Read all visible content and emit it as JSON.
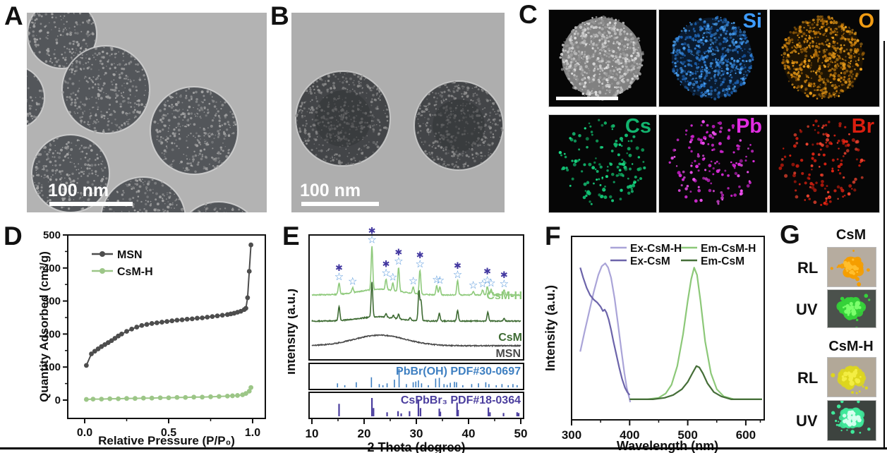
{
  "panels": {
    "a": {
      "label": "A",
      "scale_bar": "100 nm"
    },
    "b": {
      "label": "B",
      "scale_bar": "100 nm"
    },
    "c": {
      "label": "C",
      "tiles": [
        {
          "label": "",
          "color": "",
          "type": "stem"
        },
        {
          "label": "Si",
          "color": "#3d9bff",
          "type": "dense"
        },
        {
          "label": "O",
          "color": "#f09b13",
          "type": "dense"
        },
        {
          "label": "Cs",
          "color": "#12b46e",
          "type": "sparse"
        },
        {
          "label": "Pb",
          "color": "#e22ce2",
          "type": "sparse"
        },
        {
          "label": "Br",
          "color": "#da1e0f",
          "type": "sparse"
        }
      ]
    },
    "d": {
      "label": "D"
    },
    "e": {
      "label": "E"
    },
    "f": {
      "label": "F"
    },
    "g": {
      "label": "G",
      "samples": [
        {
          "title": "CsM",
          "rows": [
            {
              "light": "RL"
            },
            {
              "light": "UV"
            }
          ]
        },
        {
          "title": "CsM-H",
          "rows": [
            {
              "light": "RL"
            },
            {
              "light": "UV"
            }
          ]
        }
      ]
    }
  },
  "chart_data": [
    {
      "panel": "D",
      "type": "line",
      "title": "",
      "xlabel": "Relative Pressure (P/P₀)",
      "ylabel": "Quantity Adsorbed (cm³/g)",
      "xlim": [
        0,
        1.05
      ],
      "ylim": [
        -50,
        500
      ],
      "grid": false,
      "legend_position": "top-left",
      "xticks": [
        "0.0",
        "0.5",
        "1.0"
      ],
      "xtick_vals": [
        0.0,
        0.5,
        1.0
      ],
      "yticks": [
        "0",
        "100",
        "200",
        "300",
        "400",
        "500"
      ],
      "ytick_vals": [
        0,
        100,
        200,
        300,
        400,
        500
      ],
      "series": [
        {
          "name": "MSN",
          "color": "#4d4d4d",
          "x": [
            0.01,
            0.04,
            0.06,
            0.08,
            0.1,
            0.12,
            0.14,
            0.16,
            0.18,
            0.2,
            0.22,
            0.25,
            0.28,
            0.31,
            0.34,
            0.37,
            0.4,
            0.43,
            0.46,
            0.49,
            0.52,
            0.55,
            0.58,
            0.61,
            0.64,
            0.67,
            0.7,
            0.73,
            0.76,
            0.79,
            0.82,
            0.85,
            0.87,
            0.89,
            0.91,
            0.93,
            0.95,
            0.96,
            0.97,
            0.98,
            0.99
          ],
          "y": [
            105,
            140,
            148,
            155,
            162,
            168,
            174,
            180,
            187,
            194,
            200,
            208,
            215,
            221,
            226,
            229,
            232,
            234,
            236,
            238,
            240,
            242,
            243,
            245,
            246,
            248,
            249,
            251,
            253,
            255,
            257,
            259,
            261,
            263,
            266,
            269,
            274,
            278,
            310,
            390,
            470
          ]
        },
        {
          "name": "CsM-H",
          "color": "#9cc687",
          "x": [
            0.01,
            0.05,
            0.1,
            0.15,
            0.2,
            0.25,
            0.3,
            0.35,
            0.4,
            0.45,
            0.5,
            0.55,
            0.6,
            0.65,
            0.7,
            0.75,
            0.8,
            0.85,
            0.88,
            0.91,
            0.94,
            0.96,
            0.98,
            0.99
          ],
          "y": [
            2,
            3,
            3,
            4,
            4,
            5,
            5,
            6,
            6,
            7,
            7,
            8,
            8,
            9,
            9,
            10,
            11,
            12,
            13,
            14,
            16,
            20,
            27,
            38
          ]
        }
      ]
    },
    {
      "panel": "E",
      "type": "line",
      "title": "",
      "xlabel": "2 Theta (degree)",
      "ylabel": "Intensity (a.u.)",
      "xlim": [
        10,
        50
      ],
      "xticks": [
        "10",
        "20",
        "30",
        "40",
        "50"
      ],
      "xtick_vals": [
        10,
        20,
        30,
        40,
        50
      ],
      "traces": [
        {
          "name": "CsM-H",
          "color": "#8fca7c",
          "baseline_offset": 2,
          "peaks": [
            [
              15.2,
              16
            ],
            [
              17.8,
              7
            ],
            [
              21.5,
              62
            ],
            [
              24.2,
              15
            ],
            [
              25.5,
              10
            ],
            [
              26.6,
              34
            ],
            [
              29.4,
              9
            ],
            [
              30.7,
              34
            ],
            [
              33.9,
              13
            ],
            [
              34.5,
              12
            ],
            [
              37.9,
              20
            ],
            [
              40.9,
              5
            ],
            [
              42.7,
              7
            ],
            [
              43.6,
              12
            ],
            [
              44.3,
              8
            ],
            [
              46.8,
              7
            ]
          ]
        },
        {
          "name": "CsM",
          "color": "#3e6b33",
          "baseline_offset": 1,
          "peaks": [
            [
              15.2,
              20
            ],
            [
              21.5,
              50
            ],
            [
              24.2,
              5
            ],
            [
              25.6,
              4
            ],
            [
              26.6,
              7
            ],
            [
              28.8,
              3
            ],
            [
              30.5,
              42
            ],
            [
              30.9,
              28
            ],
            [
              34.4,
              11
            ],
            [
              37.9,
              15
            ],
            [
              43.7,
              13
            ],
            [
              46.8,
              4
            ]
          ]
        },
        {
          "name": "MSN",
          "color": "#4a4a4a",
          "baseline_offset": 0,
          "broad_hump": [
            23,
            15,
            7
          ],
          "peaks": []
        }
      ],
      "star_markers": {
        "open_color": "#4a90d9",
        "filled_color": "#4338a0",
        "positions": [
          [
            15.2,
            "both"
          ],
          [
            17.8,
            "open"
          ],
          [
            21.5,
            "both"
          ],
          [
            24.2,
            "both"
          ],
          [
            25.5,
            "open"
          ],
          [
            26.6,
            "both"
          ],
          [
            29.4,
            "open"
          ],
          [
            30.7,
            "both"
          ],
          [
            33.9,
            "open"
          ],
          [
            34.5,
            "open"
          ],
          [
            37.9,
            "both"
          ],
          [
            40.9,
            "open"
          ],
          [
            42.7,
            "open"
          ],
          [
            43.6,
            "both"
          ],
          [
            44.3,
            "open"
          ],
          [
            46.8,
            "both"
          ]
        ]
      },
      "references": [
        {
          "name": "PbBr(OH) PDF#30-0697",
          "color": "#3e7fc1",
          "sticks": [
            [
              14.9,
              0.22
            ],
            [
              16.3,
              0.12
            ],
            [
              18.5,
              0.28
            ],
            [
              21.4,
              0.55
            ],
            [
              22.9,
              0.18
            ],
            [
              23.6,
              0.12
            ],
            [
              24.4,
              0.22
            ],
            [
              25.8,
              0.42
            ],
            [
              26.7,
              1.0
            ],
            [
              28.1,
              0.18
            ],
            [
              29.4,
              0.28
            ],
            [
              29.9,
              0.32
            ],
            [
              30.4,
              0.38
            ],
            [
              31.0,
              0.22
            ],
            [
              32.3,
              0.12
            ],
            [
              33.7,
              0.48
            ],
            [
              34.4,
              0.52
            ],
            [
              35.3,
              0.18
            ],
            [
              35.9,
              0.14
            ],
            [
              36.5,
              0.25
            ],
            [
              37.3,
              0.3
            ],
            [
              37.7,
              0.28
            ],
            [
              38.9,
              0.12
            ],
            [
              40.6,
              0.18
            ],
            [
              41.9,
              0.22
            ],
            [
              43.3,
              0.28
            ],
            [
              43.9,
              0.18
            ],
            [
              45.3,
              0.12
            ],
            [
              46.4,
              0.18
            ],
            [
              47.6,
              0.12
            ],
            [
              48.5,
              0.18
            ],
            [
              49.3,
              0.12
            ]
          ]
        },
        {
          "name": "CsPbBr₃ PDF#18-0364",
          "color": "#4b3e9e",
          "sticks": [
            [
              15.2,
              0.68
            ],
            [
              21.5,
              1.0
            ],
            [
              21.8,
              0.45
            ],
            [
              24.4,
              0.22
            ],
            [
              26.5,
              0.28
            ],
            [
              27.1,
              0.16
            ],
            [
              28.7,
              0.28
            ],
            [
              30.4,
              0.92
            ],
            [
              30.8,
              0.45
            ],
            [
              34.4,
              0.42
            ],
            [
              34.6,
              0.25
            ],
            [
              37.8,
              0.75
            ],
            [
              38.0,
              0.35
            ],
            [
              43.8,
              0.48
            ],
            [
              44.1,
              0.22
            ],
            [
              46.7,
              0.18
            ],
            [
              49.3,
              0.22
            ],
            [
              49.6,
              0.18
            ]
          ]
        }
      ]
    },
    {
      "panel": "F",
      "type": "line",
      "title": "",
      "xlabel": "Wavelength (nm)",
      "ylabel": "Intensity (a.u.)",
      "xlim": [
        300,
        640
      ],
      "xticks": [
        "300",
        "400",
        "500",
        "600"
      ],
      "xtick_vals": [
        300,
        400,
        500,
        600
      ],
      "legend_columns": [
        [
          "Ex-CsM-H",
          "Ex-CsM"
        ],
        [
          "Em-CsM-H",
          "Em-CsM"
        ]
      ],
      "series": [
        {
          "name": "Ex-CsM-H",
          "color": "#aaa4d8",
          "x": [
            315,
            322,
            330,
            338,
            346,
            352,
            358,
            363,
            368,
            374,
            380,
            386,
            391,
            395,
            398,
            400,
            401
          ],
          "y": [
            0.35,
            0.48,
            0.62,
            0.76,
            0.88,
            0.94,
            0.96,
            0.93,
            0.86,
            0.72,
            0.54,
            0.35,
            0.2,
            0.1,
            0.05,
            0.02,
            0.0
          ]
        },
        {
          "name": "Ex-CsM",
          "color": "#6c64aa",
          "x": [
            315,
            320,
            326,
            332,
            338,
            344,
            350,
            354,
            357,
            360,
            364,
            368,
            372,
            377,
            382,
            387,
            392,
            396,
            400
          ],
          "y": [
            0.93,
            0.86,
            0.79,
            0.74,
            0.71,
            0.69,
            0.66,
            0.63,
            0.64,
            0.62,
            0.57,
            0.5,
            0.42,
            0.33,
            0.24,
            0.16,
            0.1,
            0.07,
            0.05
          ]
        },
        {
          "name": "Em-CsM-H",
          "color": "#8cc878",
          "x": [
            400,
            430,
            450,
            462,
            472,
            482,
            492,
            500,
            506,
            511,
            516,
            522,
            530,
            540,
            550,
            562,
            580,
            600,
            628
          ],
          "y": [
            0.02,
            0.02,
            0.03,
            0.06,
            0.12,
            0.25,
            0.47,
            0.7,
            0.85,
            0.93,
            0.88,
            0.7,
            0.42,
            0.2,
            0.09,
            0.04,
            0.02,
            0.02,
            0.02
          ]
        },
        {
          "name": "Em-CsM",
          "color": "#456e38",
          "x": [
            400,
            440,
            460,
            475,
            490,
            500,
            508,
            515,
            520,
            526,
            534,
            545,
            558,
            575,
            600,
            628
          ],
          "y": [
            0.02,
            0.02,
            0.03,
            0.05,
            0.09,
            0.14,
            0.2,
            0.25,
            0.24,
            0.2,
            0.13,
            0.07,
            0.04,
            0.02,
            0.02,
            0.02
          ]
        }
      ]
    }
  ]
}
